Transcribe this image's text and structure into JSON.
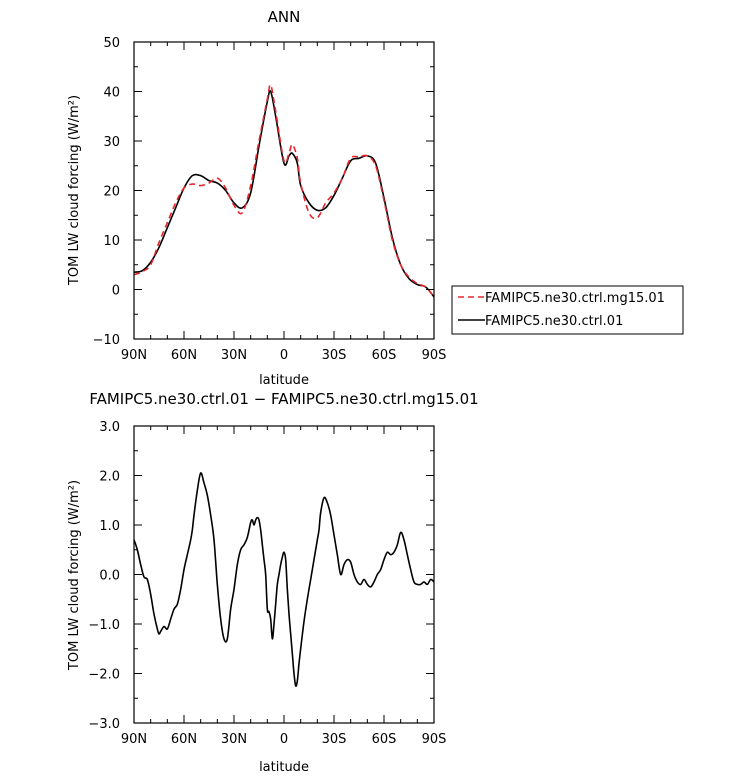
{
  "chart_data": [
    {
      "type": "line",
      "title": "ANN",
      "xlabel": "latitude",
      "ylabel": "TOM LW cloud forcing (W/m²)",
      "xlim": [
        90,
        -90
      ],
      "ylim": [
        -10,
        50
      ],
      "xticks": [
        {
          "value": 90,
          "label": "90N"
        },
        {
          "value": 60,
          "label": "60N"
        },
        {
          "value": 30,
          "label": "30N"
        },
        {
          "value": 0,
          "label": "0"
        },
        {
          "value": -30,
          "label": "30S"
        },
        {
          "value": -60,
          "label": "60S"
        },
        {
          "value": -90,
          "label": "90S"
        }
      ],
      "yticks": [
        {
          "value": 50,
          "label": "50"
        },
        {
          "value": 40,
          "label": "40"
        },
        {
          "value": 30,
          "label": "30"
        },
        {
          "value": 20,
          "label": "20"
        },
        {
          "value": 10,
          "label": "10"
        },
        {
          "value": 0,
          "label": "0"
        },
        {
          "value": -10,
          "label": "−10"
        }
      ],
      "grid": false,
      "legend": "right",
      "series": [
        {
          "name": "FAMIPC5.ne30.ctrl.mg15.01",
          "color": "#e8262b",
          "dash": "6,4",
          "x": [
            90,
            85,
            80,
            75,
            70,
            65,
            60,
            55,
            50,
            45,
            40,
            35,
            30,
            25,
            20,
            15,
            10,
            8,
            5,
            0,
            -3,
            -5,
            -8,
            -10,
            -15,
            -20,
            -25,
            -30,
            -35,
            -40,
            -45,
            -50,
            -55,
            -60,
            -65,
            -70,
            -75,
            -80,
            -85,
            -90
          ],
          "y": [
            3.0,
            3.6,
            5.0,
            9.5,
            13.5,
            17.5,
            20.5,
            21.3,
            21.0,
            21.5,
            22.5,
            20.5,
            17.0,
            15.5,
            21.0,
            30.0,
            38.5,
            41.3,
            36.0,
            26.0,
            27.5,
            29.3,
            26.5,
            21.5,
            15.5,
            14.5,
            17.5,
            19.5,
            22.5,
            26.5,
            26.8,
            27.0,
            25.0,
            18.0,
            10.0,
            5.0,
            2.5,
            1.2,
            0.5,
            -1.5
          ]
        },
        {
          "name": "FAMIPC5.ne30.ctrl.01",
          "color": "#000000",
          "dash": "",
          "x": [
            90,
            85,
            80,
            75,
            70,
            65,
            60,
            55,
            50,
            45,
            40,
            35,
            30,
            25,
            20,
            15,
            10,
            8,
            5,
            0,
            -3,
            -5,
            -8,
            -10,
            -15,
            -20,
            -25,
            -30,
            -35,
            -40,
            -45,
            -50,
            -55,
            -60,
            -65,
            -70,
            -75,
            -80,
            -85,
            -90
          ],
          "y": [
            3.5,
            3.8,
            5.5,
            8.5,
            12.5,
            16.5,
            20.5,
            23.0,
            23.0,
            22.0,
            21.5,
            20.0,
            17.5,
            16.5,
            19.5,
            29.0,
            38.0,
            40.0,
            35.0,
            25.5,
            27.0,
            27.5,
            25.5,
            21.0,
            17.5,
            16.0,
            16.5,
            19.0,
            22.5,
            26.0,
            26.5,
            27.0,
            25.5,
            18.5,
            10.5,
            5.0,
            2.2,
            1.0,
            0.5,
            -1.5
          ]
        }
      ]
    },
    {
      "type": "line",
      "title": "FAMIPC5.ne30.ctrl.01 − FAMIPC5.ne30.ctrl.mg15.01",
      "xlabel": "latitude",
      "ylabel": "TOM LW cloud forcing (W/m²)",
      "xlim": [
        90,
        -90
      ],
      "ylim": [
        -3.0,
        3.0
      ],
      "xticks": [
        {
          "value": 90,
          "label": "90N"
        },
        {
          "value": 60,
          "label": "60N"
        },
        {
          "value": 30,
          "label": "30N"
        },
        {
          "value": 0,
          "label": "0"
        },
        {
          "value": -30,
          "label": "30S"
        },
        {
          "value": -60,
          "label": "60S"
        },
        {
          "value": -90,
          "label": "90S"
        }
      ],
      "yticks": [
        {
          "value": 3.0,
          "label": "3.0"
        },
        {
          "value": 2.0,
          "label": "2.0"
        },
        {
          "value": 1.0,
          "label": "1.0"
        },
        {
          "value": 0.0,
          "label": "0.0"
        },
        {
          "value": -1.0,
          "label": "−1.0"
        },
        {
          "value": -2.0,
          "label": "−2.0"
        },
        {
          "value": -3.0,
          "label": "−3.0"
        }
      ],
      "grid": false,
      "series": [
        {
          "color": "#000000",
          "dash": "",
          "x": [
            90,
            88,
            86,
            84,
            82,
            80,
            78,
            76,
            75,
            74,
            72,
            70,
            68,
            66,
            64,
            62,
            60,
            58,
            56,
            55,
            54,
            52,
            50,
            48,
            46,
            44,
            42,
            40,
            38,
            36,
            34,
            32,
            30,
            28,
            26,
            24,
            22,
            20,
            19,
            18,
            17,
            16,
            15,
            14,
            13,
            12,
            11,
            10,
            9,
            8,
            7,
            6,
            5,
            4,
            3,
            2,
            1,
            0,
            -1,
            -2,
            -3,
            -4,
            -5,
            -6,
            -7,
            -8,
            -9,
            -10,
            -12,
            -14,
            -16,
            -18,
            -19,
            -20,
            -21,
            -22,
            -24,
            -26,
            -28,
            -30,
            -32,
            -34,
            -36,
            -38,
            -40,
            -42,
            -44,
            -46,
            -48,
            -50,
            -52,
            -54,
            -56,
            -58,
            -60,
            -62,
            -64,
            -66,
            -68,
            -70,
            -72,
            -74,
            -76,
            -78,
            -80,
            -82,
            -84,
            -86,
            -88,
            -90
          ],
          "y": [
            0.7,
            0.5,
            0.2,
            -0.05,
            -0.1,
            -0.4,
            -0.8,
            -1.1,
            -1.2,
            -1.15,
            -1.05,
            -1.1,
            -0.9,
            -0.7,
            -0.6,
            -0.3,
            0.1,
            0.4,
            0.7,
            0.9,
            1.2,
            1.7,
            2.05,
            1.85,
            1.6,
            1.2,
            0.7,
            -0.2,
            -0.9,
            -1.3,
            -1.3,
            -0.7,
            -0.3,
            0.2,
            0.5,
            0.6,
            0.75,
            1.05,
            1.1,
            1.0,
            1.1,
            1.15,
            1.1,
            0.9,
            0.6,
            0.3,
            0.0,
            -0.7,
            -0.75,
            -0.9,
            -1.3,
            -1.0,
            -0.6,
            -0.2,
            0.0,
            0.2,
            0.35,
            0.45,
            0.3,
            -0.3,
            -0.8,
            -1.2,
            -1.6,
            -2.0,
            -2.25,
            -2.15,
            -1.8,
            -1.5,
            -0.95,
            -0.5,
            -0.1,
            0.3,
            0.5,
            0.7,
            0.9,
            1.25,
            1.55,
            1.45,
            1.2,
            0.8,
            0.4,
            0.0,
            0.2,
            0.3,
            0.25,
            0.0,
            -0.15,
            -0.2,
            -0.1,
            -0.2,
            -0.25,
            -0.15,
            0.0,
            0.1,
            0.3,
            0.45,
            0.4,
            0.45,
            0.6,
            0.85,
            0.7,
            0.4,
            0.1,
            -0.15,
            -0.2,
            -0.2,
            -0.15,
            -0.2,
            -0.1,
            -0.15
          ]
        }
      ]
    }
  ]
}
